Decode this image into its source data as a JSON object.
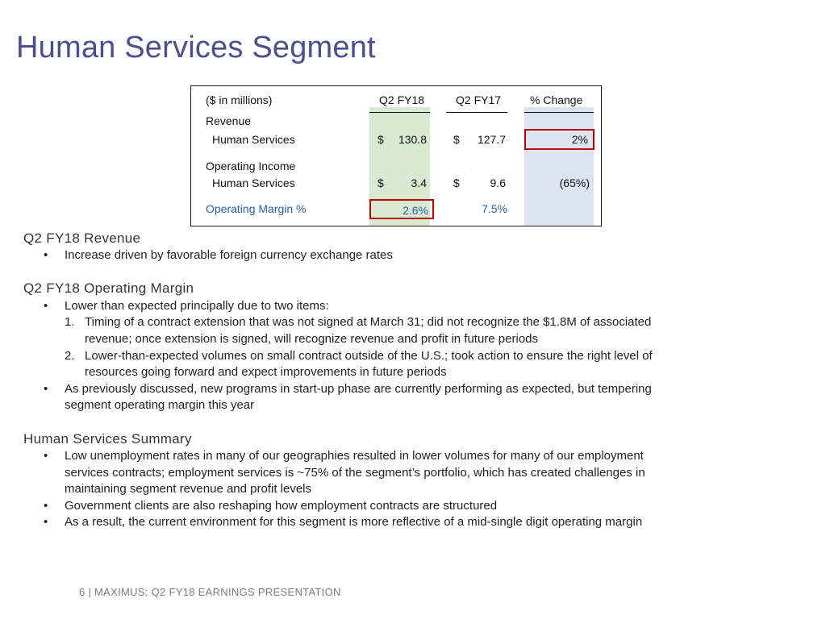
{
  "title": "Human Services Segment",
  "table": {
    "units": "($ in millions)",
    "col_q2fy18": "Q2 FY18",
    "col_q2fy17": "Q2 FY17",
    "col_change": "% Change",
    "revenue_label": "Revenue",
    "revenue_row": {
      "label": "Human Services",
      "cur": "$",
      "q2fy18": "130.8",
      "cur2": "$",
      "q2fy17": "127.7",
      "change": "2%"
    },
    "opinc_label": "Operating Income",
    "opinc_row": {
      "label": "Human Services",
      "cur": "$",
      "q2fy18": "3.4",
      "cur2": "$",
      "q2fy17": "9.6",
      "change": "(65%)"
    },
    "margin_row": {
      "label": "Operating Margin %",
      "q2fy18": "2.6%",
      "q2fy17": "7.5%"
    }
  },
  "sections": {
    "revenue": {
      "heading": "Q2 FY18 Revenue",
      "bullets": [
        "Increase driven by favorable foreign currency exchange rates"
      ]
    },
    "margin": {
      "heading": "Q2 FY18 Operating Margin",
      "bullet1": "Lower than expected principally due to two items:",
      "item1": [
        "Timing of a contract extension that was not signed at March 31; did not recognize the $1.8M of associated",
        "revenue; once extension is signed, will recognize revenue and profit in future periods"
      ],
      "item2": [
        "Lower-than-expected volumes on small contract outside of the U.S.; took action to ensure the right level of",
        "resources going forward and expect improvements in future periods"
      ],
      "bullet2": [
        "As previously discussed, new programs in start-up phase are currently performing as expected, but tempering",
        "segment operating margin this year"
      ]
    },
    "summary": {
      "heading": "Human Services Summary",
      "bullet1": [
        "Low unemployment rates in many of our geographies resulted in lower volumes for many of our employment",
        "services contracts; employment services is ~75% of the segment’s portfolio, which has created challenges in",
        "maintaining segment revenue and profit levels"
      ],
      "bullet2": "Government clients are also reshaping how employment contracts are structured",
      "bullet3": "As a result, the current environment for this segment is more reflective of a mid-single digit operating margin"
    }
  },
  "bullet_char": "•",
  "num1": "1.",
  "num2": "2.",
  "footer": "6 | MAXIMUS: Q2 FY18 EARNINGS PRESENTATION",
  "colors": {
    "title": "#4d4d8f",
    "highlight_green": "#d9ead3",
    "highlight_blue": "#dce4f0",
    "callout_red": "#c00000",
    "margin_text": "#2a5caa"
  }
}
